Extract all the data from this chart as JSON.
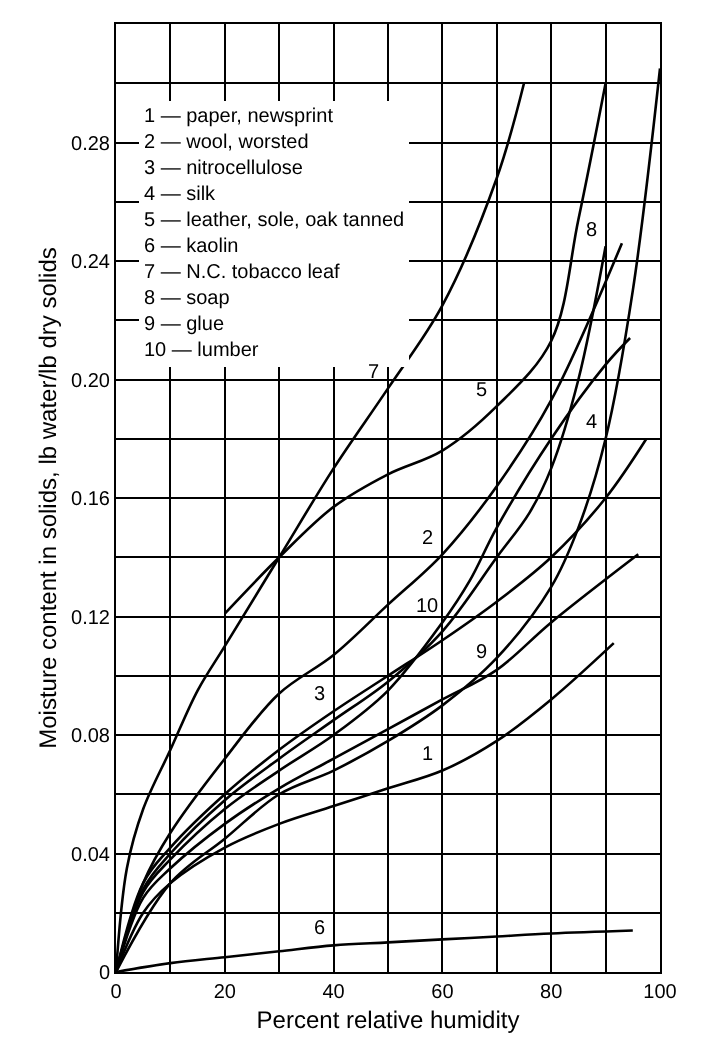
{
  "chart_data": {
    "type": "line",
    "xlabel": "Percent relative humidity",
    "ylabel": "Moisture content in solids, lb water/lb dry solids",
    "xlim": [
      0,
      100
    ],
    "ylim": [
      0,
      0.32
    ],
    "xticks": [
      0,
      {
        "value": 10,
        "label": null
      },
      20,
      {
        "value": 30,
        "label": null
      },
      40,
      {
        "value": 50,
        "label": null
      },
      60,
      {
        "value": 70,
        "label": null
      },
      80,
      {
        "value": 90,
        "label": null
      },
      100
    ],
    "yticks": [
      0,
      {
        "value": 0.02,
        "label": null
      },
      0.04,
      {
        "value": 0.06,
        "label": null
      },
      0.08,
      {
        "value": 0.1,
        "label": null
      },
      0.12,
      {
        "value": 0.14,
        "label": null
      },
      0.16,
      {
        "value": 0.18,
        "label": null
      },
      {
        "value": 0.2,
        "label": "0.20"
      },
      {
        "value": 0.22,
        "label": null
      },
      0.24,
      {
        "value": 0.26,
        "label": null
      },
      0.28,
      {
        "value": 0.3,
        "label": null
      },
      {
        "value": 0.32,
        "label": null
      }
    ],
    "grid": true,
    "marker": "none",
    "line_style": "solid",
    "series": [
      {
        "color": "#000000",
        "x": [
          0,
          5,
          10,
          20,
          30,
          40,
          50,
          60,
          70,
          80,
          91.5
        ],
        "values": [
          0,
          0.02,
          0.03,
          0.042,
          0.05,
          0.056,
          0.062,
          0.068,
          0.078,
          0.092,
          0.111
        ]
      },
      {
        "color": "#000000",
        "x": [
          0,
          5,
          10,
          20,
          30,
          40,
          50,
          60,
          70,
          80,
          93
        ],
        "values": [
          0,
          0.03,
          0.047,
          0.072,
          0.094,
          0.107,
          0.124,
          0.141,
          0.164,
          0.193,
          0.246
        ]
      },
      {
        "color": "#000000",
        "x": [
          0,
          5,
          10,
          20,
          30,
          40,
          50,
          60,
          70,
          80,
          90,
          97.5
        ],
        "values": [
          0,
          0.03,
          0.042,
          0.06,
          0.075,
          0.088,
          0.1,
          0.112,
          0.125,
          0.14,
          0.16,
          0.18
        ]
      },
      {
        "color": "#000000",
        "x": [
          0,
          10,
          20,
          30,
          40,
          50,
          60,
          70,
          80,
          85,
          90,
          95,
          100
        ],
        "values": [
          0,
          0.03,
          0.045,
          0.06,
          0.068,
          0.078,
          0.09,
          0.106,
          0.13,
          0.15,
          0.18,
          0.23,
          0.305
        ]
      },
      {
        "color": "#000000",
        "x": [
          20,
          30,
          40,
          50,
          60,
          70,
          80,
          85,
          90
        ],
        "values": [
          0.121,
          0.14,
          0.157,
          0.168,
          0.176,
          0.191,
          0.213,
          0.254,
          0.3
        ]
      },
      {
        "color": "#000000",
        "x": [
          0,
          10,
          20,
          30,
          40,
          50,
          60,
          70,
          80,
          95
        ],
        "values": [
          0,
          0.003,
          0.005,
          0.007,
          0.009,
          0.01,
          0.011,
          0.012,
          0.013,
          0.014
        ]
      },
      {
        "color": "#000000",
        "x": [
          0,
          2,
          5,
          10,
          15,
          20,
          30,
          40,
          50,
          60,
          70,
          75
        ],
        "values": [
          0,
          0.035,
          0.055,
          0.075,
          0.095,
          0.11,
          0.14,
          0.17,
          0.197,
          0.225,
          0.268,
          0.3
        ]
      },
      {
        "color": "#000000",
        "x": [
          0,
          5,
          10,
          20,
          30,
          40,
          50,
          60,
          70,
          76,
          80,
          85,
          90
        ],
        "values": [
          0,
          0.028,
          0.04,
          0.058,
          0.072,
          0.085,
          0.098,
          0.115,
          0.14,
          0.155,
          0.17,
          0.2,
          0.245
        ]
      },
      {
        "color": "#000000",
        "x": [
          0,
          5,
          10,
          20,
          30,
          40,
          50,
          60,
          70,
          80,
          96
        ],
        "values": [
          0,
          0.025,
          0.035,
          0.05,
          0.062,
          0.072,
          0.082,
          0.092,
          0.102,
          0.118,
          0.141
        ]
      },
      {
        "color": "#000000",
        "x": [
          0,
          5,
          10,
          20,
          30,
          40,
          50,
          60,
          65,
          70,
          80,
          90,
          94.5
        ],
        "values": [
          0,
          0.027,
          0.038,
          0.055,
          0.068,
          0.08,
          0.095,
          0.118,
          0.132,
          0.15,
          0.18,
          0.205,
          0.214
        ]
      }
    ],
    "annotations": [
      "1 — paper, newsprint",
      "2 — wool, worsted",
      "3 — nitrocellulose",
      "4 — silk",
      "5 — leather, sole, oak tanned",
      "6 — kaolin",
      "7 — N.C. tobacco leaf",
      "8 — soap",
      "9 — glue",
      "10 — lumber",
      {
        "text": "1",
        "x": 60,
        "y": 0.068
      },
      {
        "text": "2",
        "x": 60,
        "y": 0.141
      },
      {
        "text": "3",
        "x": 40,
        "y": 0.088
      },
      {
        "text": "4",
        "x": 90,
        "y": 0.18
      },
      {
        "text": "5",
        "x": 70,
        "y": 0.191
      },
      {
        "text": "6",
        "x": 40,
        "y": 0.009
      },
      {
        "text": "7",
        "x": 50,
        "y": 0.197
      },
      {
        "text": "8",
        "x": 90,
        "y": 0.245
      },
      {
        "text": "9",
        "x": 70,
        "y": 0.102
      },
      {
        "text": "10",
        "x": 60,
        "y": 0.118
      }
    ]
  }
}
